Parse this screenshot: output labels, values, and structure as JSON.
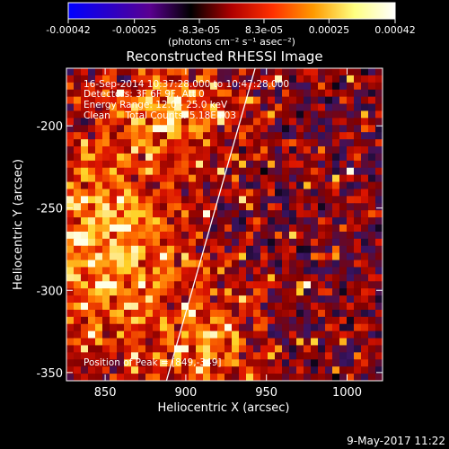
{
  "window": {
    "title": "Reconstructed RHESSI Image",
    "date_stamp": "9-May-2017 11:22"
  },
  "colorbar": {
    "ticks": [
      "-0.00042",
      "-0.00025",
      "-8.3e-05",
      "8.3e-05",
      "0.00025",
      "0.00042"
    ],
    "unit_label": "(photons cm⁻² s⁻¹ asec⁻²)",
    "range": [
      -0.00042,
      0.00042
    ],
    "colors": [
      "#0000ff",
      "#2a00c8",
      "#5a0090",
      "#000000",
      "#b00000",
      "#ff3000",
      "#ff9a00",
      "#ffff80",
      "#ffffff"
    ]
  },
  "info": {
    "line1": "16-Sep-2014 10:37:28.000 to 10:47:28.000",
    "line2": "Detectors: 3F 6F 9F, Att 0",
    "line3": "Energy Range: 12.0 - 25.0 keV",
    "line4": "Clean     Total Counts: 5.18E+03",
    "peak": "Position of Peak = [849,-349]"
  },
  "chart_data": {
    "type": "heatmap",
    "title": "Reconstructed RHESSI Image",
    "xlabel": "Heliocentric X (arcsec)",
    "ylabel": "Heliocentric Y (arcsec)",
    "xlim": [
      826,
      1022
    ],
    "ylim": [
      -355,
      -165
    ],
    "xticks": [
      850,
      900,
      950,
      1000
    ],
    "yticks": [
      -200,
      -250,
      -300,
      -350
    ],
    "clim": [
      -0.00042,
      0.00042
    ],
    "peak_position": [
      849,
      -349
    ],
    "limb_line": [
      [
        888,
        -355
      ],
      [
        943,
        -165
      ]
    ],
    "image_note": "noisy CLEAN reconstruction; bright broad emission on the left/top-left, speckled faint pattern elsewhere"
  }
}
